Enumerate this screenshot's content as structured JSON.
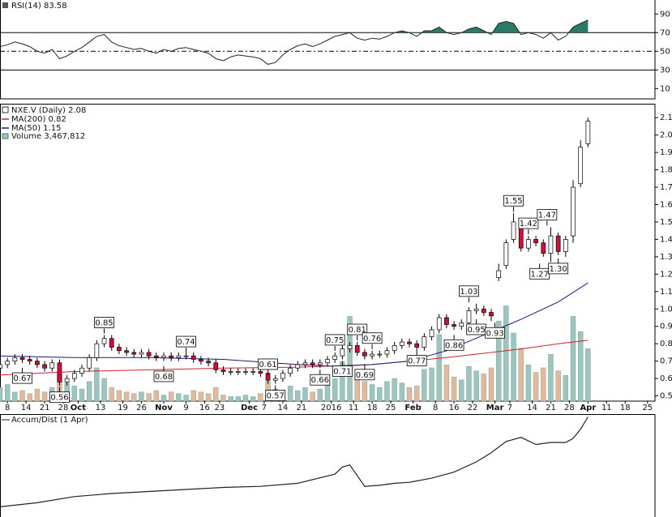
{
  "chart_data": [
    {
      "type": "rsi",
      "title": "RSI(14) 83.58",
      "color": "#222222",
      "fill_color": "#2a7a6a",
      "xlim": [
        0,
        176
      ],
      "ylim": [
        -1,
        105
      ],
      "yticks": [
        90,
        70,
        50,
        30,
        10
      ],
      "overbought": 70,
      "midline": 50,
      "oversold": 30,
      "x": [
        0,
        2,
        4,
        6,
        8,
        10,
        12,
        14,
        16,
        18,
        20,
        22,
        24,
        26,
        28,
        30,
        32,
        34,
        36,
        38,
        40,
        42,
        44,
        46,
        48,
        50,
        52,
        54,
        56,
        58,
        60,
        62,
        64,
        66,
        68,
        70,
        72,
        74,
        76,
        78,
        80,
        82,
        84,
        86,
        88,
        90,
        92,
        94,
        96,
        98,
        100,
        102,
        104,
        106,
        108,
        110,
        112,
        114,
        116,
        118,
        120,
        122,
        124,
        126,
        128,
        130,
        132,
        134,
        136,
        138,
        140,
        142,
        144,
        146,
        148,
        150,
        152,
        154,
        156,
        158
      ],
      "values": [
        55,
        57,
        60,
        58,
        55,
        50,
        48,
        52,
        42,
        45,
        50,
        54,
        60,
        66,
        68,
        60,
        56,
        54,
        52,
        53,
        50,
        48,
        52,
        50,
        53,
        54,
        52,
        50,
        48,
        42,
        40,
        44,
        46,
        45,
        44,
        42,
        36,
        38,
        46,
        52,
        56,
        58,
        55,
        58,
        62,
        66,
        68,
        70,
        64,
        62,
        64,
        63,
        66,
        70,
        72,
        70,
        66,
        72,
        72,
        76,
        70,
        68,
        70,
        74,
        76,
        72,
        68,
        80,
        82,
        80,
        68,
        70,
        68,
        64,
        70,
        62,
        66,
        76,
        80,
        83.58
      ]
    },
    {
      "type": "candlestick",
      "title": "NXE.V (Daily) 2.08",
      "up_color": "#ffffff",
      "down_color": "#d0103a",
      "xlim": [
        0,
        176
      ],
      "ylim": [
        0.47,
        2.18
      ],
      "yticks": [
        0.5,
        0.6,
        0.7,
        0.8,
        0.9,
        {
          "value": 1,
          "label": "1.0"
        },
        1.1,
        1.2,
        1.3,
        1.4,
        1.5,
        1.6,
        1.7,
        1.8,
        1.9,
        {
          "value": 2,
          "label": "2.0"
        },
        2.1
      ],
      "xticks": [
        {
          "value": 2,
          "label": "8"
        },
        {
          "value": 7,
          "label": "14"
        },
        {
          "value": 12,
          "label": "21"
        },
        {
          "value": 17,
          "label": "28"
        },
        {
          "value": 21,
          "label": "Oct"
        },
        {
          "value": 27,
          "label": "13"
        },
        {
          "value": 33,
          "label": "19"
        },
        {
          "value": 38,
          "label": "26"
        },
        {
          "value": 44,
          "label": "Nov"
        },
        {
          "value": 50,
          "label": "9"
        },
        {
          "value": 55,
          "label": "16"
        },
        {
          "value": 59,
          "label": "23"
        },
        {
          "value": 67,
          "label": "Dec"
        },
        {
          "value": 71,
          "label": "7"
        },
        {
          "value": 76,
          "label": "14"
        },
        {
          "value": 81,
          "label": "21"
        },
        {
          "value": 89,
          "label": "2016"
        },
        {
          "value": 95,
          "label": "11"
        },
        {
          "value": 100,
          "label": "18"
        },
        {
          "value": 105,
          "label": "25"
        },
        {
          "value": 111,
          "label": "Feb"
        },
        {
          "value": 117,
          "label": "8"
        },
        {
          "value": 122,
          "label": "16"
        },
        {
          "value": 127,
          "label": "22"
        },
        {
          "value": 133,
          "label": "Mar"
        },
        {
          "value": 137,
          "label": "7"
        },
        {
          "value": 143,
          "label": "14"
        },
        {
          "value": 148,
          "label": "21"
        },
        {
          "value": 153,
          "label": "28"
        },
        {
          "value": 158,
          "label": "Apr"
        },
        {
          "value": 163,
          "label": "11"
        },
        {
          "value": 168,
          "label": "18"
        },
        {
          "value": 174,
          "label": "25"
        }
      ],
      "x": [
        0,
        2,
        4,
        6,
        8,
        10,
        12,
        14,
        16,
        18,
        20,
        22,
        24,
        26,
        28,
        30,
        32,
        34,
        36,
        38,
        40,
        42,
        44,
        46,
        48,
        50,
        52,
        54,
        56,
        58,
        60,
        62,
        64,
        66,
        68,
        70,
        72,
        74,
        76,
        78,
        80,
        82,
        84,
        86,
        88,
        90,
        92,
        94,
        96,
        98,
        100,
        102,
        104,
        106,
        108,
        110,
        112,
        114,
        116,
        118,
        120,
        122,
        124,
        126,
        128,
        130,
        132,
        134,
        136,
        138,
        140,
        142,
        144,
        146,
        148,
        150,
        152,
        154,
        156,
        158
      ],
      "open": [
        0.66,
        0.68,
        0.7,
        0.72,
        0.71,
        0.7,
        0.68,
        0.66,
        0.69,
        0.58,
        0.6,
        0.63,
        0.66,
        0.72,
        0.8,
        0.83,
        0.78,
        0.76,
        0.75,
        0.74,
        0.75,
        0.73,
        0.72,
        0.73,
        0.72,
        0.73,
        0.73,
        0.71,
        0.7,
        0.69,
        0.65,
        0.64,
        0.64,
        0.64,
        0.64,
        0.64,
        0.63,
        0.59,
        0.6,
        0.63,
        0.66,
        0.68,
        0.69,
        0.68,
        0.69,
        0.71,
        0.73,
        0.77,
        0.79,
        0.75,
        0.73,
        0.74,
        0.74,
        0.76,
        0.79,
        0.81,
        0.8,
        0.78,
        0.84,
        0.88,
        0.95,
        0.91,
        0.9,
        0.92,
        0.99,
        1.0,
        0.98,
        1.18,
        1.25,
        1.4,
        1.5,
        1.35,
        1.4,
        1.38,
        1.32,
        1.42,
        1.33,
        1.42,
        1.72,
        1.95
      ],
      "high": [
        0.7,
        0.72,
        0.74,
        0.74,
        0.73,
        0.72,
        0.7,
        0.71,
        0.71,
        0.62,
        0.65,
        0.68,
        0.74,
        0.82,
        0.85,
        0.85,
        0.8,
        0.78,
        0.77,
        0.77,
        0.77,
        0.75,
        0.75,
        0.75,
        0.75,
        0.75,
        0.75,
        0.73,
        0.72,
        0.71,
        0.67,
        0.66,
        0.66,
        0.66,
        0.66,
        0.66,
        0.65,
        0.62,
        0.65,
        0.68,
        0.7,
        0.71,
        0.71,
        0.71,
        0.73,
        0.75,
        0.79,
        0.81,
        0.81,
        0.77,
        0.76,
        0.76,
        0.78,
        0.81,
        0.83,
        0.83,
        0.82,
        0.86,
        0.9,
        0.97,
        0.97,
        0.93,
        0.94,
        1.01,
        1.03,
        1.02,
        1.0,
        1.26,
        1.4,
        1.55,
        1.52,
        1.42,
        1.42,
        1.4,
        1.47,
        1.44,
        1.42,
        1.74,
        1.97,
        2.1
      ],
      "low": [
        0.64,
        0.66,
        0.68,
        0.69,
        0.68,
        0.66,
        0.64,
        0.64,
        0.56,
        0.56,
        0.58,
        0.61,
        0.64,
        0.7,
        0.78,
        0.76,
        0.74,
        0.73,
        0.72,
        0.72,
        0.71,
        0.7,
        0.7,
        0.7,
        0.7,
        0.71,
        0.69,
        0.68,
        0.67,
        0.63,
        0.62,
        0.62,
        0.62,
        0.62,
        0.62,
        0.61,
        0.57,
        0.57,
        0.58,
        0.61,
        0.64,
        0.66,
        0.66,
        0.66,
        0.67,
        0.69,
        0.71,
        0.75,
        0.73,
        0.71,
        0.71,
        0.72,
        0.72,
        0.74,
        0.77,
        0.78,
        0.76,
        0.76,
        0.82,
        0.86,
        0.89,
        0.88,
        0.88,
        0.9,
        0.97,
        0.96,
        0.93,
        1.16,
        1.23,
        1.38,
        1.33,
        1.33,
        1.36,
        1.3,
        1.27,
        1.31,
        1.3,
        1.38,
        1.7,
        1.93
      ],
      "close": [
        0.68,
        0.7,
        0.72,
        0.71,
        0.7,
        0.68,
        0.66,
        0.69,
        0.58,
        0.6,
        0.63,
        0.66,
        0.72,
        0.8,
        0.83,
        0.78,
        0.76,
        0.75,
        0.74,
        0.75,
        0.73,
        0.72,
        0.73,
        0.72,
        0.73,
        0.73,
        0.71,
        0.7,
        0.69,
        0.65,
        0.64,
        0.64,
        0.64,
        0.64,
        0.64,
        0.63,
        0.59,
        0.6,
        0.63,
        0.66,
        0.68,
        0.69,
        0.68,
        0.69,
        0.71,
        0.73,
        0.77,
        0.79,
        0.75,
        0.73,
        0.74,
        0.74,
        0.76,
        0.79,
        0.81,
        0.8,
        0.78,
        0.84,
        0.88,
        0.95,
        0.91,
        0.9,
        0.92,
        0.99,
        1.0,
        0.98,
        0.96,
        1.22,
        1.38,
        1.5,
        1.35,
        1.4,
        1.38,
        1.32,
        1.42,
        1.33,
        1.4,
        1.7,
        1.93,
        2.08
      ],
      "moving_averages": [
        {
          "name": "MA(200) 0.82",
          "color": "#d02030",
          "x": [
            0,
            20,
            40,
            60,
            80,
            100,
            120,
            130,
            140,
            150,
            158
          ],
          "values": [
            0.62,
            0.64,
            0.65,
            0.66,
            0.665,
            0.68,
            0.72,
            0.745,
            0.77,
            0.8,
            0.82
          ]
        },
        {
          "name": "MA(50) 1.15",
          "color": "#1a1a7a",
          "x": [
            0,
            20,
            40,
            60,
            80,
            90,
            100,
            110,
            120,
            130,
            140,
            150,
            158
          ],
          "values": [
            0.73,
            0.72,
            0.72,
            0.71,
            0.68,
            0.67,
            0.68,
            0.7,
            0.76,
            0.85,
            0.94,
            1.04,
            1.15
          ]
        }
      ],
      "volume": {
        "name": "Volume 3,467,812",
        "up_color": "#9cc5bd",
        "down_color": "#e2b99a",
        "ylim": [
          0,
          7500000
        ],
        "values": [
          900000,
          1100000,
          600000,
          700000,
          500000,
          800000,
          600000,
          900000,
          1800000,
          1200000,
          1000000,
          800000,
          1300000,
          2200000,
          1500000,
          900000,
          700000,
          600000,
          500000,
          600000,
          500000,
          700000,
          400000,
          600000,
          500000,
          400000,
          700000,
          600000,
          500000,
          900000,
          400000,
          300000,
          300000,
          400000,
          300000,
          500000,
          1300000,
          800000,
          600000,
          1000000,
          700000,
          900000,
          600000,
          800000,
          1200000,
          1500000,
          2600000,
          5600000,
          1800000,
          1300000,
          1100000,
          900000,
          1300000,
          1500000,
          1200000,
          900000,
          1000000,
          2100000,
          2200000,
          4400000,
          2400000,
          1600000,
          1400000,
          2300000,
          2000000,
          1800000,
          2200000,
          5300000,
          6300000,
          4500000,
          3500000,
          2400000,
          1900000,
          2200000,
          3100000,
          2000000,
          1700000,
          5600000,
          4600000,
          3467812
        ]
      },
      "annotations": [
        {
          "x": 6,
          "value": 0.67,
          "position": "below"
        },
        {
          "x": 16,
          "value": 0.56,
          "position": "below"
        },
        {
          "x": 28,
          "value": 0.85,
          "position": "above"
        },
        {
          "x": 44,
          "value": 0.68,
          "position": "below"
        },
        {
          "x": 50,
          "value": 0.74,
          "position": "above"
        },
        {
          "x": 72,
          "value": 0.61,
          "position": "above"
        },
        {
          "x": 74,
          "value": 0.57,
          "position": "below"
        },
        {
          "x": 86,
          "value": 0.66,
          "position": "below"
        },
        {
          "x": 90,
          "value": 0.75,
          "position": "above"
        },
        {
          "x": 92,
          "value": 0.71,
          "position": "below"
        },
        {
          "x": 96,
          "value": 0.81,
          "position": "above"
        },
        {
          "x": 98,
          "value": 0.69,
          "position": "below"
        },
        {
          "x": 100,
          "value": 0.76,
          "position": "above"
        },
        {
          "x": 112,
          "value": 0.77,
          "position": "below"
        },
        {
          "x": 122,
          "value": 0.86,
          "position": "below"
        },
        {
          "x": 126,
          "value": 1.03,
          "position": "above"
        },
        {
          "x": 128,
          "value": 0.95,
          "position": "below"
        },
        {
          "x": 133,
          "value": 0.93,
          "position": "below"
        },
        {
          "x": 138,
          "value": 1.55,
          "position": "above"
        },
        {
          "x": 142,
          "value": 1.42,
          "position": "above"
        },
        {
          "x": 145,
          "value": 1.27,
          "position": "below"
        },
        {
          "x": 147,
          "value": 1.47,
          "position": "above"
        },
        {
          "x": 150,
          "value": 1.3,
          "label": "1.30",
          "position": "below"
        }
      ]
    },
    {
      "type": "line",
      "title": "Accum/Dist (1 Apr)",
      "color": "#222222",
      "xlim": [
        0,
        176
      ],
      "ylim": [
        0,
        100
      ],
      "x": [
        0,
        10,
        20,
        30,
        40,
        50,
        60,
        70,
        80,
        90,
        92,
        94,
        98,
        102,
        106,
        110,
        116,
        122,
        128,
        132,
        136,
        140,
        144,
        148,
        152,
        154,
        156,
        158
      ],
      "values": [
        10,
        14,
        20,
        23,
        25,
        27,
        29,
        30,
        33,
        42,
        49,
        51,
        30,
        31,
        33,
        34,
        38,
        44,
        54,
        63,
        74,
        78,
        71,
        73,
        73,
        77,
        86,
        98
      ]
    }
  ]
}
